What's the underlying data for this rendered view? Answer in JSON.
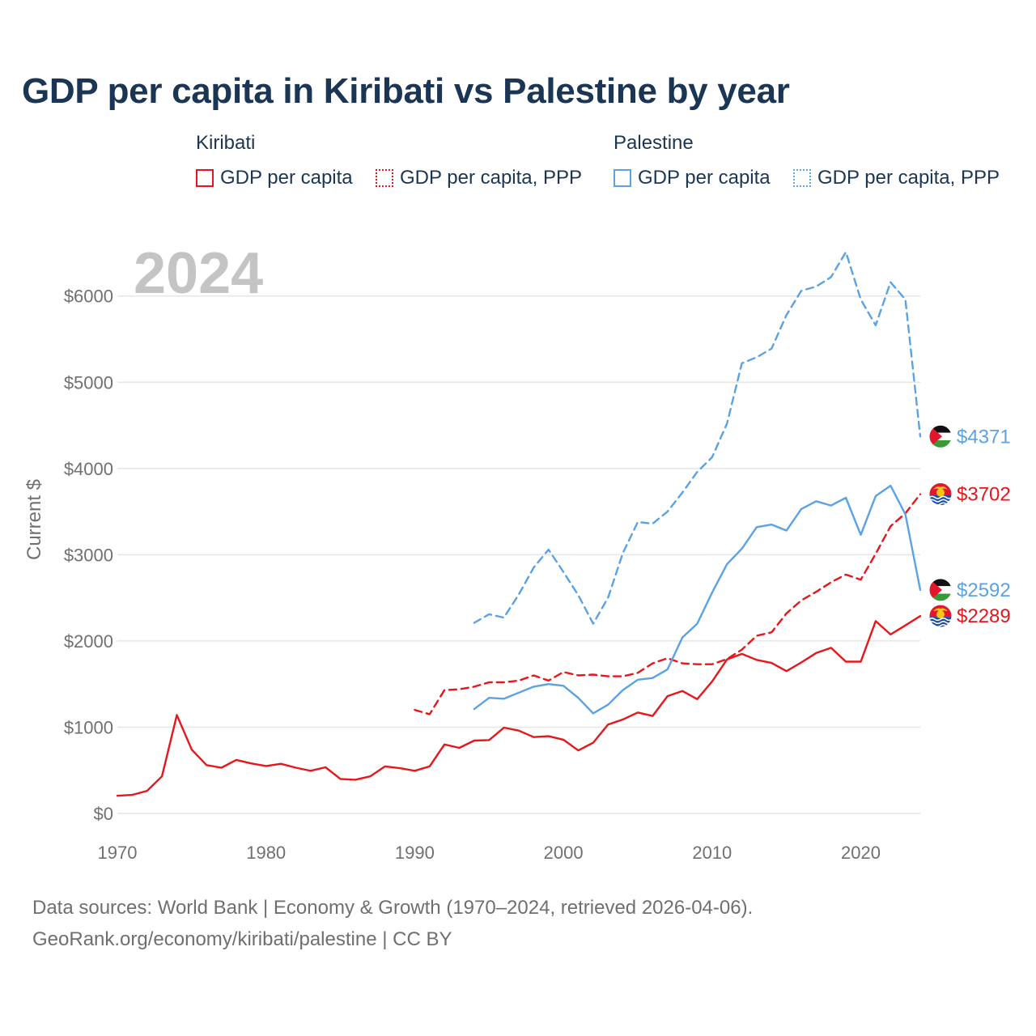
{
  "title": "GDP per capita in Kiribati vs Palestine by year",
  "legend": {
    "kiribati": {
      "name": "Kiribati",
      "items": [
        "GDP per capita",
        "GDP per capita, PPP"
      ]
    },
    "palestine": {
      "name": "Palestine",
      "items": [
        "GDP per capita",
        "GDP per capita, PPP"
      ]
    }
  },
  "colors": {
    "kiribati": "#e8161b",
    "palestine": "#5aa2e3",
    "title": "#1b3554"
  },
  "footer": {
    "line1": "Data sources: World Bank | Economy & Growth (1970–2024, retrieved 2026-04-06).",
    "line2": "GeoRank.org/economy/kiribati/palestine | CC BY"
  },
  "chart_data": {
    "type": "line",
    "watermark_year": "2024",
    "ylabel": "Current $",
    "xlim": [
      1970,
      2024
    ],
    "ylim": [
      0,
      6500
    ],
    "x_ticks": [
      1970,
      1980,
      1990,
      2000,
      2010,
      2020
    ],
    "x_tick_labels": [
      "1970",
      "1980",
      "1990",
      "2000",
      "2010",
      "2020"
    ],
    "y_ticks": [
      0,
      1000,
      2000,
      3000,
      4000,
      5000,
      6000
    ],
    "y_tick_labels": [
      "$0",
      "$1000",
      "$2000",
      "$3000",
      "$4000",
      "$5000",
      "$6000"
    ],
    "series": [
      {
        "name": "Kiribati GDP per capita",
        "country": "kiribati",
        "style": "solid",
        "start": 1970,
        "end_label": "$2289",
        "values": [
          205,
          215,
          262,
          430,
          1140,
          740,
          560,
          530,
          620,
          580,
          550,
          575,
          530,
          495,
          535,
          400,
          390,
          430,
          545,
          525,
          495,
          545,
          800,
          760,
          845,
          850,
          995,
          960,
          885,
          895,
          855,
          730,
          820,
          1030,
          1090,
          1170,
          1130,
          1360,
          1420,
          1325,
          1530,
          1785,
          1850,
          1780,
          1745,
          1650,
          1750,
          1860,
          1920,
          1760,
          1760,
          2230,
          2075,
          2180,
          2289
        ]
      },
      {
        "name": "Kiribati GDP per capita, PPP",
        "country": "kiribati",
        "style": "dashed",
        "start": 1990,
        "end_label": "$3702",
        "values": [
          1200,
          1150,
          1430,
          1440,
          1470,
          1520,
          1520,
          1540,
          1600,
          1540,
          1640,
          1600,
          1610,
          1590,
          1590,
          1630,
          1740,
          1800,
          1740,
          1730,
          1730,
          1790,
          1900,
          2060,
          2100,
          2320,
          2470,
          2570,
          2680,
          2770,
          2710,
          3010,
          3330,
          3480,
          3702
        ]
      },
      {
        "name": "Palestine GDP per capita",
        "country": "palestine",
        "style": "solid",
        "start": 1994,
        "end_label": "$2592",
        "values": [
          1210,
          1340,
          1330,
          1400,
          1470,
          1500,
          1480,
          1340,
          1160,
          1260,
          1430,
          1550,
          1570,
          1670,
          2040,
          2200,
          2560,
          2890,
          3070,
          3320,
          3350,
          3280,
          3530,
          3620,
          3570,
          3660,
          3230,
          3680,
          3800,
          3470,
          2592
        ]
      },
      {
        "name": "Palestine GDP per capita, PPP",
        "country": "palestine",
        "style": "dashed",
        "start": 1994,
        "end_label": "$4371",
        "values": [
          2210,
          2310,
          2270,
          2540,
          2850,
          3060,
          2800,
          2530,
          2200,
          2500,
          3020,
          3380,
          3360,
          3500,
          3720,
          3960,
          4130,
          4520,
          5220,
          5290,
          5390,
          5780,
          6060,
          6110,
          6220,
          6510,
          5960,
          5660,
          6160,
          5960,
          4371
        ]
      }
    ]
  }
}
